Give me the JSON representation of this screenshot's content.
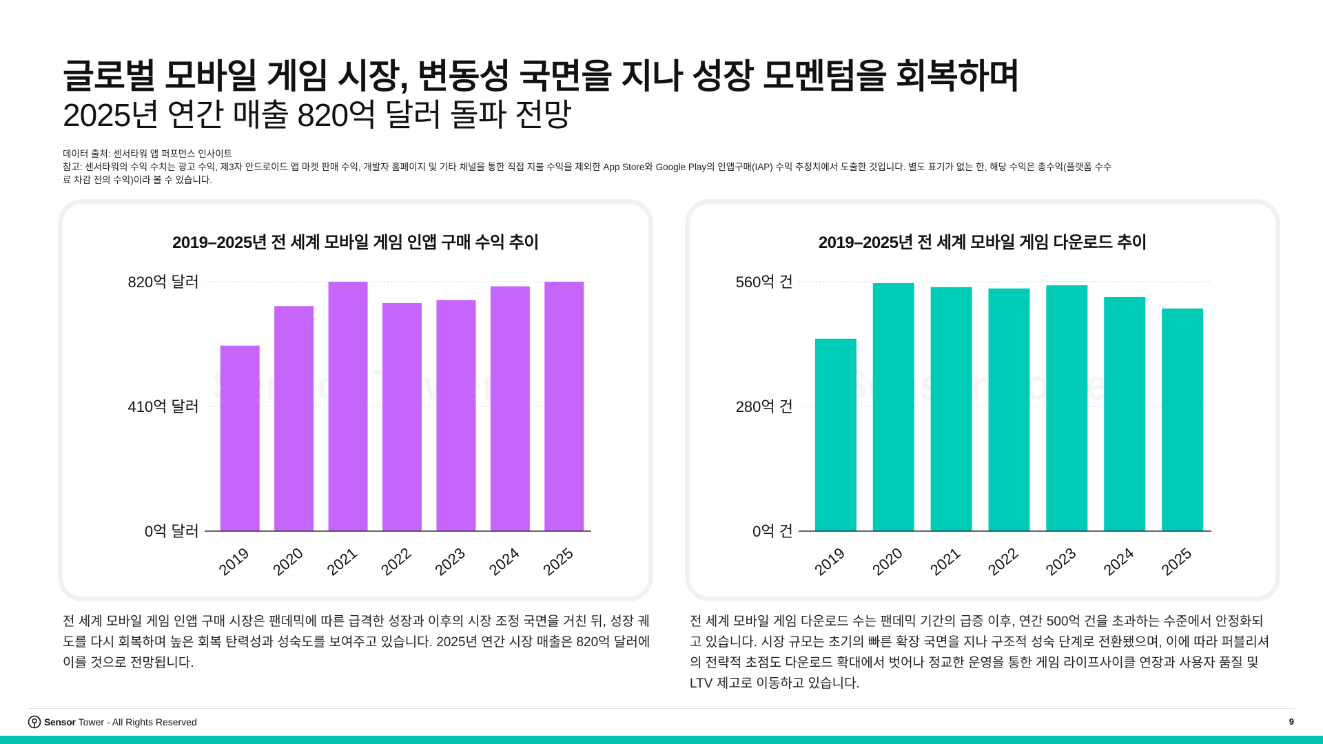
{
  "header": {
    "title": "글로벌 모바일 게임 시장, 변동성 국면을 지나 성장 모멘텀을 회복하며",
    "subtitle": "2025년 연간 매출 820억 달러 돌파 전망"
  },
  "notes": {
    "source": "데이터 출처: 센서타워 앱 퍼포먼스 인사이트",
    "note_line1": "참고: 센서타워의 수익 수치는 광고 수익, 제3자 안드로이드 앱 마켓 판매 수익, 개발자 홈페이지 및 기타 채널을 통한 직접 지불 수익을 제외한 App Store와 Google Play의 인앱구매(IAP) 수익 추정치에서 도출한 것입니다. 별도 표기가 없는 한, 해당 수익은 총수익(플랫폼 수수",
    "note_line2": "료 차감 전의 수익)이라 볼 수 있습니다."
  },
  "watermark": "Sensor Tower",
  "chart_data": [
    {
      "type": "bar",
      "title": "2019–2025년 전 세계 모바일 게임 인앱 구매 수익 추이",
      "categories": [
        "2019",
        "2020",
        "2021",
        "2022",
        "2023",
        "2024",
        "2025"
      ],
      "values": [
        610,
        740,
        820,
        750,
        760,
        805,
        820
      ],
      "ylim": [
        0,
        820
      ],
      "yticks": [
        0,
        410,
        820
      ],
      "ytick_labels": [
        "0억 달러",
        "410억 달러",
        "820억 달러"
      ],
      "color": "#c565fa",
      "grid": true,
      "legend": "none"
    },
    {
      "type": "bar",
      "title": "2019–2025년 전 세계 모바일 게임 다운로드 추이",
      "categories": [
        "2019",
        "2020",
        "2021",
        "2022",
        "2023",
        "2024",
        "2025"
      ],
      "values": [
        432,
        557,
        548,
        545,
        552,
        526,
        500
      ],
      "ylim": [
        0,
        560
      ],
      "yticks": [
        0,
        280,
        560
      ],
      "ytick_labels": [
        "0억 건",
        "280억 건",
        "560억 건"
      ],
      "color": "#00cbb6",
      "grid": true,
      "legend": "none"
    }
  ],
  "descriptions": {
    "left": "전 세계 모바일 게임 인앱 구매 시장은 팬데믹에 따른 급격한 성장과 이후의 시장 조정 국면을 거친 뒤, 성장 궤도를 다시 회복하며 높은 회복 탄력성과 성숙도를 보여주고 있습니다. 2025년 연간 시장 매출은 820억 달러에 이를 것으로 전망됩니다.",
    "right": "전 세계 모바일 게임 다운로드 수는 팬데믹 기간의 급증 이후, 연간 500억 건을 초과하는 수준에서 안정화되고 있습니다. 시장 규모는 초기의 빠른 확장 국면을 지나 구조적 성숙 단계로 전환됐으며, 이에 따라 퍼블리셔의 전략적 초점도 다운로드 확대에서 벗어나 정교한 운영을 통한 게임 라이프사이클 연장과 사용자 품질 및 LTV 제고로 이동하고 있습니다."
  },
  "footer": {
    "brand_prefix": "Sensor",
    "brand_suffix": "Tower",
    "rights": "- All Rights Reserved",
    "page_number": "9",
    "logo_icon": "sensor-tower-pin-icon",
    "accent": "#00c4b0"
  }
}
